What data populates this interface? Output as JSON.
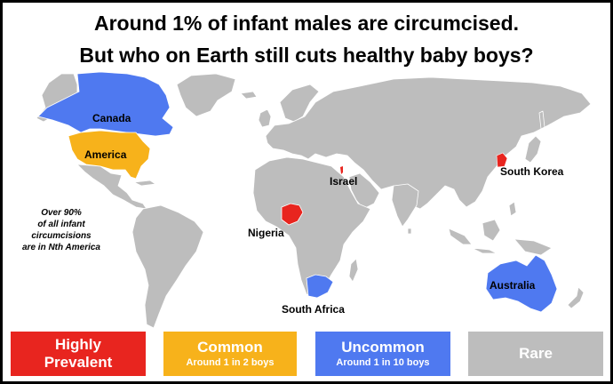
{
  "title": {
    "line1": "Around 1% of infant males are circumcised.",
    "line2": "But who on Earth still cuts healthy baby boys?"
  },
  "map": {
    "labels": {
      "canada": "Canada",
      "america": "America",
      "israel": "Israel",
      "south_korea": "South Korea",
      "nigeria": "Nigeria",
      "south_africa": "South Africa",
      "australia": "Australia"
    },
    "note": [
      "Over 90%",
      "of all infant",
      "circumcisions",
      "are in Nth America"
    ]
  },
  "legend": [
    {
      "key": "highly",
      "line1": "Highly",
      "line2": "Prevalent",
      "color": "#e8251f"
    },
    {
      "key": "common",
      "line1": "Common",
      "line2": "Around 1 in 2 boys",
      "color": "#f7b21b"
    },
    {
      "key": "uncommon",
      "line1": "Uncommon",
      "line2": "Around 1 in 10 boys",
      "color": "#4f79f0"
    },
    {
      "key": "rare",
      "line1": "Rare",
      "line2": "",
      "color": "#bdbdbd"
    }
  ],
  "colors": {
    "highly_prevalent": "#e8251f",
    "common": "#f7b21b",
    "uncommon": "#4f79f0",
    "rare": "#bdbdbd",
    "ocean": "#ffffff"
  }
}
